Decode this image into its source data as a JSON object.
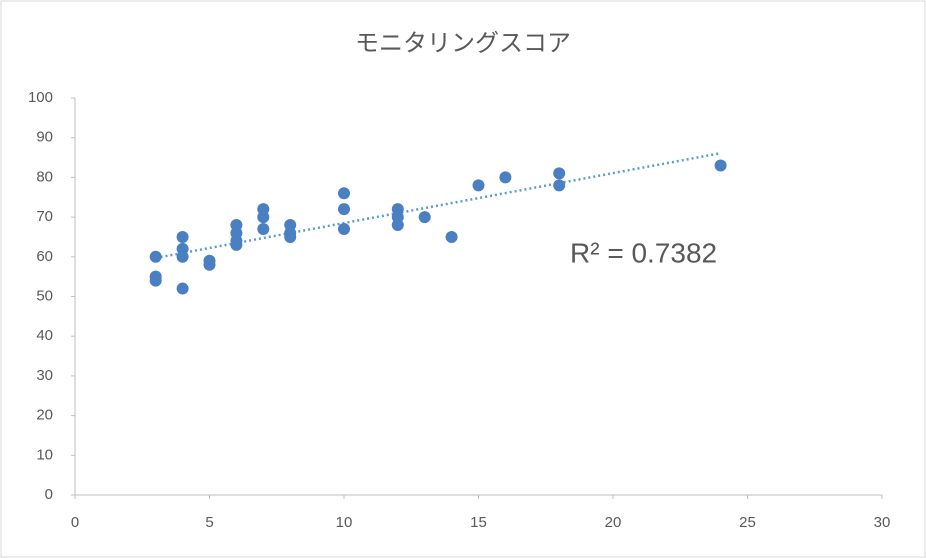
{
  "chart_data": {
    "type": "scatter",
    "title": "モニタリングスコア",
    "x": [
      3,
      3,
      3,
      4,
      4,
      4,
      4,
      5,
      5,
      6,
      6,
      6,
      6,
      7,
      7,
      7,
      8,
      8,
      8,
      10,
      10,
      10,
      12,
      12,
      12,
      13,
      14,
      15,
      16,
      18,
      18,
      24
    ],
    "values": [
      60,
      55,
      54,
      65,
      62,
      60,
      52,
      59,
      58,
      68,
      66,
      64,
      63,
      72,
      70,
      67,
      68,
      66,
      65,
      76,
      72,
      67,
      72,
      70,
      68,
      70,
      65,
      78,
      80,
      81,
      78,
      83
    ],
    "color": "#4a7fc1",
    "trendline": {
      "x": [
        3,
        24
      ],
      "values": [
        59.7,
        86.1
      ],
      "color": "#5b9bd5"
    },
    "annotation": "R² = 0.7382",
    "xlim": [
      0,
      30
    ],
    "xticks": [
      0,
      5,
      10,
      15,
      20,
      25,
      30
    ],
    "ylim": [
      0,
      100
    ],
    "yticks": [
      0,
      10,
      20,
      30,
      40,
      50,
      60,
      70,
      80,
      90,
      100
    ],
    "grid": false
  }
}
